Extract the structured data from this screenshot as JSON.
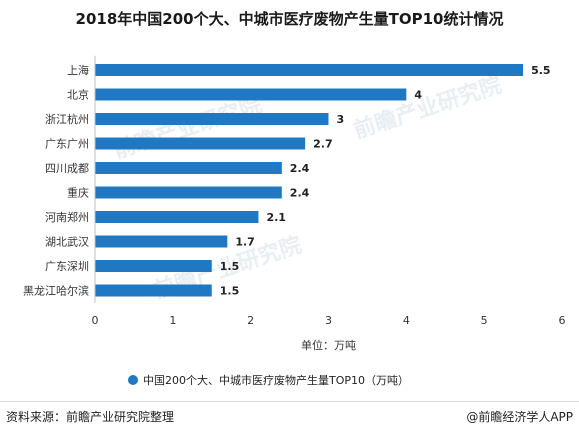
{
  "title": "2018年中国200个大、中城市医疗废物产生量TOP10统计情况",
  "footer": {
    "source": "资料来源：前瞻产业研究院整理",
    "brand": "@前瞻经济学人APP"
  },
  "watermark": "前瞻产业研究院",
  "colors": {
    "bar": "#1f78c1",
    "axis": "#bfbfbf",
    "text": "#333333"
  },
  "chart_data": {
    "type": "bar",
    "orientation": "horizontal",
    "categories": [
      "上海",
      "北京",
      "浙江杭州",
      "广东广州",
      "四川成都",
      "重庆",
      "河南郑州",
      "湖北武汉",
      "广东深圳",
      "黑龙江哈尔滨"
    ],
    "series": [
      {
        "name": "中国200个大、中城市医疗废物产生量TOP10（万吨）",
        "values": [
          5.5,
          4,
          3,
          2.7,
          2.4,
          2.4,
          2.1,
          1.7,
          1.5,
          1.5
        ],
        "labels": [
          "5.5",
          "4",
          "3",
          "2.7",
          "2.4",
          "2.4",
          "2.1",
          "1.7",
          "1.5",
          "1.5"
        ]
      }
    ],
    "xlim": [
      0,
      6
    ],
    "xticks": [
      "0",
      "1",
      "2",
      "3",
      "4",
      "5",
      "6"
    ],
    "xlabel": "单位：万吨",
    "ylabel": "",
    "grid": false,
    "legend": "bottom"
  }
}
